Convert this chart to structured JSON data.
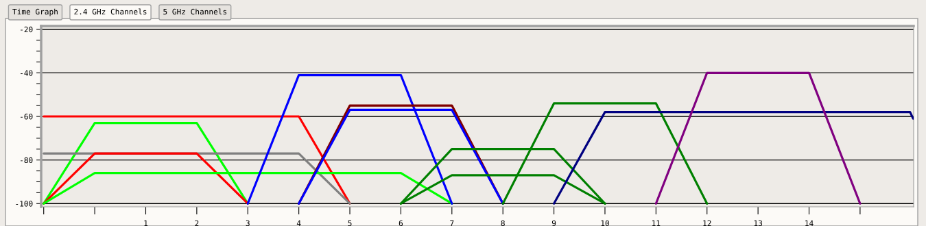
{
  "chart_data": {
    "type": "line",
    "annotations": [
      "Time Graph",
      "2.4 GHz Channels",
      "5 GHz Channels"
    ],
    "xlim": [
      -1.05,
      16.05
    ],
    "ylim": [
      -101.5,
      -18.5
    ],
    "xticks": [
      {
        "value": -1,
        "label": null
      },
      {
        "value": 0,
        "label": null
      },
      1,
      2,
      3,
      4,
      5,
      6,
      7,
      8,
      9,
      10,
      11,
      12,
      13,
      14,
      {
        "value": 15,
        "label": null
      }
    ],
    "yticks": [
      -20,
      {
        "value": -25,
        "label": null
      },
      {
        "value": -30,
        "label": null
      },
      {
        "value": -35,
        "label": null
      },
      -40,
      {
        "value": -45,
        "label": null
      },
      {
        "value": -50,
        "label": null
      },
      {
        "value": -55,
        "label": null
      },
      -60,
      {
        "value": -65,
        "label": null
      },
      {
        "value": -70,
        "label": null
      },
      {
        "value": -75,
        "label": null
      },
      -80,
      {
        "value": -85,
        "label": null
      },
      {
        "value": -90,
        "label": null
      },
      {
        "value": -95,
        "label": null
      },
      -100
    ],
    "grid": "y",
    "marker": "none",
    "line_style": "solid",
    "series": [
      {
        "color": "#ff0000",
        "x": [
          -1,
          4,
          5
        ],
        "values": [
          -60,
          -60,
          -100
        ]
      },
      {
        "color": "#00ff00",
        "x": [
          -1,
          0,
          2,
          3
        ],
        "values": [
          -100,
          -63,
          -63,
          -100
        ]
      },
      {
        "color": "#808080",
        "x": [
          -1,
          4,
          5
        ],
        "values": [
          -77,
          -77,
          -100
        ]
      },
      {
        "color": "#ff0000",
        "x": [
          -1,
          0,
          2,
          3
        ],
        "values": [
          -100,
          -77,
          -77,
          -100
        ]
      },
      {
        "color": "#00ff00",
        "x": [
          -1,
          0,
          6,
          7
        ],
        "values": [
          -100,
          -86,
          -86,
          -100
        ]
      },
      {
        "color": "#0000ff",
        "x": [
          3,
          4,
          6,
          7
        ],
        "values": [
          -100,
          -41,
          -41,
          -100
        ]
      },
      {
        "color": "#800000",
        "x": [
          4,
          5,
          7,
          8
        ],
        "values": [
          -100,
          -55,
          -55,
          -100
        ]
      },
      {
        "color": "#0000ff",
        "x": [
          4,
          5,
          7,
          8
        ],
        "values": [
          -100,
          -57,
          -57,
          -100
        ]
      },
      {
        "color": "#008000",
        "x": [
          6,
          7,
          9,
          10
        ],
        "values": [
          -100,
          -75,
          -75,
          -100
        ]
      },
      {
        "color": "#008000",
        "x": [
          6,
          7,
          9,
          10
        ],
        "values": [
          -100,
          -87,
          -87,
          -100
        ]
      },
      {
        "color": "#008000",
        "x": [
          8,
          9,
          11,
          12
        ],
        "values": [
          -100,
          -54,
          -54,
          -100
        ]
      },
      {
        "color": "#000080",
        "x": [
          9,
          10,
          15.98,
          16.04
        ],
        "values": [
          -100,
          -58,
          -58,
          -61
        ]
      },
      {
        "color": "#800080",
        "x": [
          11,
          12,
          14,
          15
        ],
        "values": [
          -100,
          -40,
          -40,
          -100
        ]
      }
    ]
  }
}
